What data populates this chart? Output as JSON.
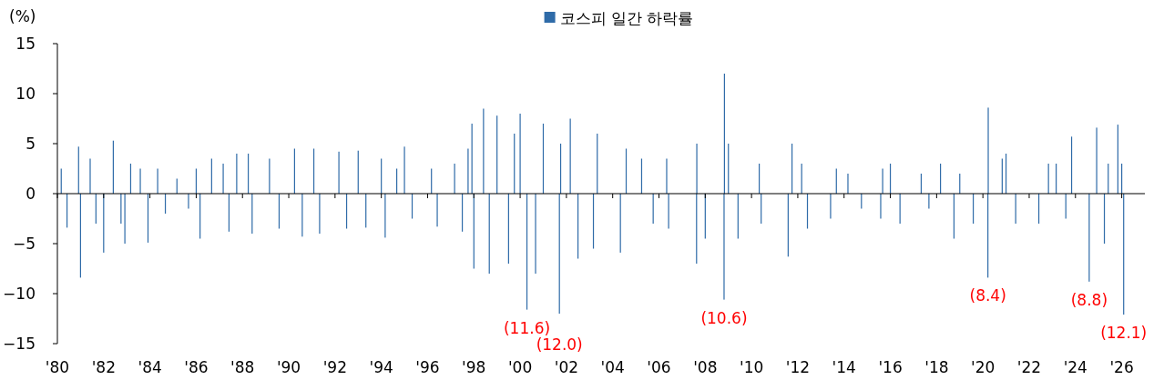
{
  "chart_data": {
    "type": "bar",
    "ylabel": "(%)",
    "legend": "top",
    "x": [
      "1980-03",
      "1980-06",
      "1980-12",
      "1981-01",
      "1981-06",
      "1981-09",
      "1982-01",
      "1982-06",
      "1982-10",
      "1982-12",
      "1983-03",
      "1983-08",
      "1983-12",
      "1984-05",
      "1984-09",
      "1985-03",
      "1985-09",
      "1986-01",
      "1986-03",
      "1986-09",
      "1987-03",
      "1987-06",
      "1987-10",
      "1988-04",
      "1988-06",
      "1989-03",
      "1989-08",
      "1990-04",
      "1990-08",
      "1991-02",
      "1991-05",
      "1992-03",
      "1992-07",
      "1993-01",
      "1993-05",
      "1994-01",
      "1994-03",
      "1994-09",
      "1995-01",
      "1995-05",
      "1996-03",
      "1996-06",
      "1997-03",
      "1997-07",
      "1997-10",
      "1997-12",
      "1998-01",
      "1998-06",
      "1998-09",
      "1999-01",
      "1999-07",
      "1999-10",
      "2000-01",
      "2000-04-17",
      "2000-09",
      "2001-01",
      "2001-09-12",
      "2001-10",
      "2002-03",
      "2002-07",
      "2003-03",
      "2003-05",
      "2004-05",
      "2004-08",
      "2005-04",
      "2005-10",
      "2006-05",
      "2006-06",
      "2007-08-16",
      "2007-08-20",
      "2008-01",
      "2008-10-24",
      "2008-10-30",
      "2009-01",
      "2009-06",
      "2010-05",
      "2010-06",
      "2011-08",
      "2011-10",
      "2012-03",
      "2012-06",
      "2013-06",
      "2013-09",
      "2014-03",
      "2014-10",
      "2015-08",
      "2015-09",
      "2016-01",
      "2016-06",
      "2017-05",
      "2017-09",
      "2018-03",
      "2018-10",
      "2019-01",
      "2019-08",
      "2020-03-19",
      "2020-03-24",
      "2020-11",
      "2021-01",
      "2021-06",
      "2022-06",
      "2022-11",
      "2023-03",
      "2023-08",
      "2023-11",
      "2024-08-05",
      "2024-12",
      "2025-04",
      "2025-06",
      "2025-11",
      "2026-01",
      "2026-02"
    ],
    "series": [
      {
        "name": "코스피 일간 하락률",
        "color": "#2f6ba8",
        "values": [
          2.5,
          -3.4,
          4.7,
          -8.4,
          3.5,
          -3,
          -5.9,
          5.3,
          -3,
          -5,
          3,
          2.5,
          -4.9,
          2.5,
          -2,
          1.5,
          -1.5,
          2.5,
          -4.5,
          3.5,
          3,
          -3.8,
          4,
          4,
          -4,
          3.5,
          -3.5,
          4.5,
          -4.3,
          4.5,
          -4,
          4.2,
          -3.5,
          4.3,
          -3.4,
          3.5,
          -4.4,
          2.5,
          4.7,
          -2.5,
          2.5,
          -3.3,
          3,
          -3.8,
          4.5,
          7,
          -7.5,
          8.5,
          -8,
          7.8,
          -7,
          6,
          8,
          -11.6,
          -8,
          7,
          -12,
          5,
          7.5,
          -6.5,
          -5.5,
          6,
          -5.9,
          4.5,
          3.5,
          -3,
          3.5,
          -3.5,
          -7,
          5,
          -4.5,
          -10.6,
          12,
          5,
          -4.5,
          3,
          -3,
          -6.3,
          5,
          3,
          -3.5,
          -2.5,
          2.5,
          2,
          -1.5,
          -2.5,
          2.5,
          3,
          -3,
          2,
          -1.5,
          3,
          -4.5,
          2,
          -3,
          -8.4,
          8.6,
          3.5,
          4,
          -3,
          -3,
          3,
          3,
          -2.5,
          5.7,
          -8.8,
          6.6,
          -5,
          3,
          6.9,
          3,
          -12.1
        ]
      }
    ],
    "xlim": [
      "1980-01-01",
      "2027-01-01"
    ],
    "xticks": [
      {
        "value": "1980",
        "label": "'80"
      },
      {
        "value": "1982",
        "label": "'82"
      },
      {
        "value": "1984",
        "label": "'84"
      },
      {
        "value": "1986",
        "label": "'86"
      },
      {
        "value": "1988",
        "label": "'88"
      },
      {
        "value": "1990",
        "label": "'90"
      },
      {
        "value": "1992",
        "label": "'92"
      },
      {
        "value": "1994",
        "label": "'94"
      },
      {
        "value": "1996",
        "label": "'96"
      },
      {
        "value": "1998",
        "label": "'98"
      },
      {
        "value": "2000",
        "label": "'00"
      },
      {
        "value": "2002",
        "label": "'02"
      },
      {
        "value": "2004",
        "label": "'04"
      },
      {
        "value": "2006",
        "label": "'06"
      },
      {
        "value": "2008",
        "label": "'08"
      },
      {
        "value": "2010",
        "label": "'10"
      },
      {
        "value": "2012",
        "label": "'12"
      },
      {
        "value": "2014",
        "label": "'14"
      },
      {
        "value": "2016",
        "label": "'16"
      },
      {
        "value": "2018",
        "label": "'18"
      },
      {
        "value": "2020",
        "label": "'20"
      },
      {
        "value": "2022",
        "label": "'22"
      },
      {
        "value": "2024",
        "label": "'24"
      },
      {
        "value": "2026",
        "label": "'26"
      }
    ],
    "ylim": [
      -15,
      15
    ],
    "yticks": [
      15,
      10,
      5,
      0,
      {
        "value": -5,
        "label": "−5"
      },
      {
        "value": -10,
        "label": "−10"
      },
      {
        "value": -15,
        "label": "−15"
      }
    ],
    "annotations": [
      {
        "text": "(11.6)",
        "x": "2000-04-17",
        "y": -11.6
      },
      {
        "text": "(12.0)",
        "x": "2001-09-12",
        "y": -12
      },
      {
        "text": "(10.6)",
        "x": "2008-10-24",
        "y": -10.6
      },
      {
        "text": "(8.4)",
        "x": "2020-03-19",
        "y": -8.4
      },
      {
        "text": "(8.8)",
        "x": "2024-08-05",
        "y": -8.8
      },
      {
        "text": "(12.1)",
        "x": "2026-02",
        "y": -12.1
      }
    ]
  }
}
